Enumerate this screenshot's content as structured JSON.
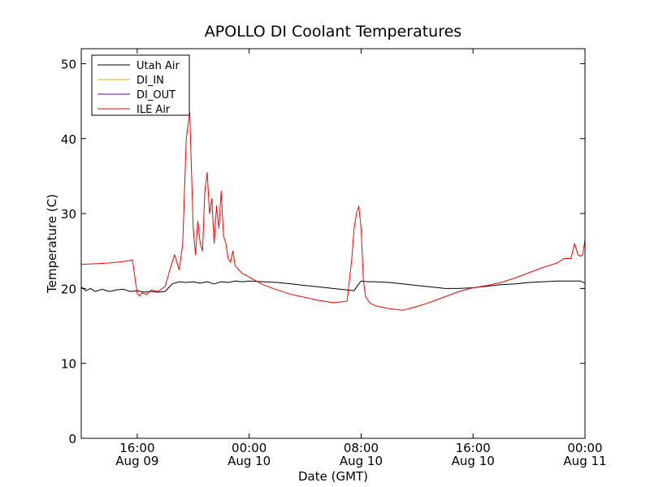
{
  "chart_data": {
    "type": "line",
    "title": "APOLLO DI Coolant Temperatures",
    "xlabel": "Date (GMT)",
    "ylabel": "Temperature (C)",
    "xlim": [
      "2011-08-09 12:00",
      "2011-08-11 00:00"
    ],
    "ylim": [
      0,
      52
    ],
    "yticks": [
      0,
      10,
      20,
      30,
      40,
      50
    ],
    "xticks": [
      {
        "x": "2011-08-09 16:00",
        "line1": "16:00",
        "line2": "Aug 09"
      },
      {
        "x": "2011-08-10 00:00",
        "line1": "00:00",
        "line2": "Aug 10"
      },
      {
        "x": "2011-08-10 08:00",
        "line1": "08:00",
        "line2": "Aug 10"
      },
      {
        "x": "2011-08-10 16:00",
        "line1": "16:00",
        "line2": "Aug 10"
      },
      {
        "x": "2011-08-11 00:00",
        "line1": "00:00",
        "line2": "Aug 11"
      }
    ],
    "grid": false,
    "legend_position": "top-left",
    "series": [
      {
        "name": "Utah Air",
        "color": "#000000",
        "x": [
          "2011-08-09 12:00",
          "2011-08-09 12:20",
          "2011-08-09 12:40",
          "2011-08-09 13:00",
          "2011-08-09 13:30",
          "2011-08-09 14:00",
          "2011-08-09 14:30",
          "2011-08-09 15:00",
          "2011-08-09 15:30",
          "2011-08-09 16:00",
          "2011-08-09 16:30",
          "2011-08-09 17:00",
          "2011-08-09 17:30",
          "2011-08-09 18:00",
          "2011-08-09 18:30",
          "2011-08-09 19:00",
          "2011-08-09 19:30",
          "2011-08-09 20:00",
          "2011-08-09 20:30",
          "2011-08-09 21:00",
          "2011-08-09 21:30",
          "2011-08-09 22:00",
          "2011-08-09 22:30",
          "2011-08-09 23:00",
          "2011-08-09 23:30",
          "2011-08-10 00:00",
          "2011-08-10 01:00",
          "2011-08-10 02:00",
          "2011-08-10 03:00",
          "2011-08-10 04:00",
          "2011-08-10 05:00",
          "2011-08-10 06:00",
          "2011-08-10 07:00",
          "2011-08-10 07:30",
          "2011-08-10 07:45",
          "2011-08-10 08:00",
          "2011-08-10 08:30",
          "2011-08-10 09:00",
          "2011-08-10 10:00",
          "2011-08-10 11:00",
          "2011-08-10 12:00",
          "2011-08-10 13:00",
          "2011-08-10 14:00",
          "2011-08-10 15:00",
          "2011-08-10 16:00",
          "2011-08-10 17:00",
          "2011-08-10 18:00",
          "2011-08-10 19:00",
          "2011-08-10 20:00",
          "2011-08-10 21:00",
          "2011-08-10 22:00",
          "2011-08-10 23:00",
          "2011-08-10 23:40",
          "2011-08-11 00:00"
        ],
        "y": [
          20.2,
          19.7,
          20.0,
          19.6,
          19.9,
          19.6,
          19.8,
          19.9,
          19.6,
          19.7,
          19.5,
          19.6,
          19.5,
          19.6,
          20.6,
          20.9,
          20.8,
          20.9,
          20.7,
          20.9,
          20.6,
          20.9,
          20.8,
          21.0,
          20.9,
          21.0,
          20.9,
          20.8,
          20.6,
          20.4,
          20.2,
          20.0,
          19.8,
          19.7,
          20.4,
          21.0,
          20.9,
          20.9,
          20.8,
          20.6,
          20.4,
          20.2,
          20.0,
          20.0,
          20.1,
          20.3,
          20.5,
          20.6,
          20.8,
          20.9,
          21.0,
          21.0,
          21.0,
          20.7
        ]
      },
      {
        "name": "DI_IN",
        "color": "#e6a800",
        "x": [],
        "y": []
      },
      {
        "name": "DI_OUT",
        "color": "#660099",
        "x": [],
        "y": []
      },
      {
        "name": "ILE Air",
        "color": "#ff0000",
        "x": [
          "2011-08-09 12:00",
          "2011-08-09 13:00",
          "2011-08-09 14:00",
          "2011-08-09 15:00",
          "2011-08-09 15:40",
          "2011-08-09 15:50",
          "2011-08-09 16:00",
          "2011-08-09 16:10",
          "2011-08-09 16:20",
          "2011-08-09 16:40",
          "2011-08-09 17:00",
          "2011-08-09 17:30",
          "2011-08-09 18:00",
          "2011-08-09 18:20",
          "2011-08-09 18:40",
          "2011-08-09 19:00",
          "2011-08-09 19:15",
          "2011-08-09 19:30",
          "2011-08-09 19:45",
          "2011-08-09 20:00",
          "2011-08-09 20:10",
          "2011-08-09 20:20",
          "2011-08-09 20:30",
          "2011-08-09 20:40",
          "2011-08-09 20:50",
          "2011-08-09 21:00",
          "2011-08-09 21:10",
          "2011-08-09 21:20",
          "2011-08-09 21:30",
          "2011-08-09 21:40",
          "2011-08-09 21:50",
          "2011-08-09 22:00",
          "2011-08-09 22:10",
          "2011-08-09 22:20",
          "2011-08-09 22:30",
          "2011-08-09 22:40",
          "2011-08-09 22:50",
          "2011-08-09 23:00",
          "2011-08-09 23:15",
          "2011-08-09 23:30",
          "2011-08-09 23:45",
          "2011-08-10 00:00",
          "2011-08-10 00:30",
          "2011-08-10 01:00",
          "2011-08-10 02:00",
          "2011-08-10 03:00",
          "2011-08-10 04:00",
          "2011-08-10 05:00",
          "2011-08-10 06:00",
          "2011-08-10 07:00",
          "2011-08-10 07:20",
          "2011-08-10 07:30",
          "2011-08-10 07:40",
          "2011-08-10 07:50",
          "2011-08-10 08:00",
          "2011-08-10 08:10",
          "2011-08-10 08:20",
          "2011-08-10 08:40",
          "2011-08-10 09:00",
          "2011-08-10 09:30",
          "2011-08-10 10:00",
          "2011-08-10 11:00",
          "2011-08-10 12:00",
          "2011-08-10 12:30",
          "2011-08-10 13:00",
          "2011-08-10 14:00",
          "2011-08-10 15:00",
          "2011-08-10 16:00",
          "2011-08-10 17:00",
          "2011-08-10 18:00",
          "2011-08-10 19:00",
          "2011-08-10 20:00",
          "2011-08-10 21:00",
          "2011-08-10 22:00",
          "2011-08-10 22:30",
          "2011-08-10 23:00",
          "2011-08-10 23:15",
          "2011-08-10 23:30",
          "2011-08-10 23:40",
          "2011-08-10 23:50",
          "2011-08-11 00:00"
        ],
        "y": [
          23.2,
          23.3,
          23.4,
          23.6,
          23.8,
          21.5,
          19.3,
          19.0,
          19.4,
          19.2,
          19.8,
          19.6,
          20.3,
          22.5,
          24.5,
          22.5,
          26.0,
          40.0,
          43.5,
          28.0,
          24.5,
          29.0,
          26.0,
          25.0,
          33.0,
          35.5,
          30.0,
          32.0,
          26.0,
          31.0,
          28.0,
          33.0,
          27.0,
          26.0,
          24.0,
          23.5,
          25.0,
          23.0,
          22.5,
          22.0,
          21.8,
          21.5,
          21.0,
          20.5,
          19.8,
          19.2,
          18.8,
          18.4,
          18.1,
          18.3,
          24.0,
          28.0,
          30.0,
          31.0,
          28.0,
          21.0,
          18.8,
          18.0,
          17.7,
          17.5,
          17.3,
          17.1,
          17.6,
          17.9,
          18.2,
          18.9,
          19.6,
          20.1,
          20.4,
          20.8,
          21.4,
          22.1,
          22.8,
          23.4,
          24.0,
          24.0,
          26.0,
          24.5,
          24.3,
          24.5,
          26.5
        ]
      }
    ]
  }
}
